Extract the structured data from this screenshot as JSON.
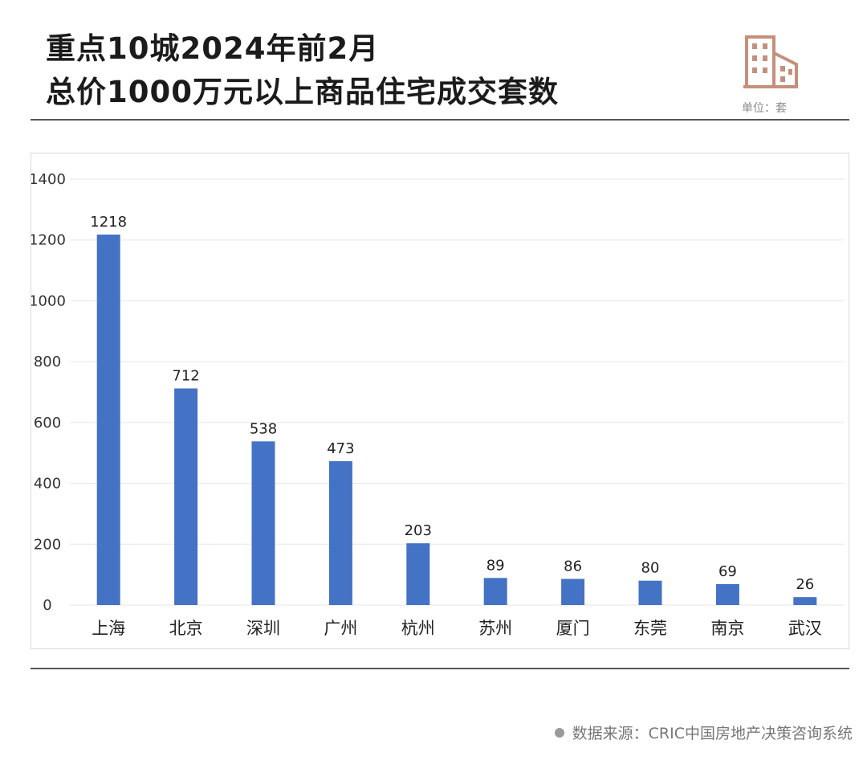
{
  "header": {
    "title_line1": "重点10城2024年前2月",
    "title_line2": "总价1000万元以上商品住宅成交套数",
    "unit_label": "单位：套",
    "icon": "building-icon"
  },
  "footer": {
    "source": "数据来源：CRIC中国房地产决策咨询系统"
  },
  "colors": {
    "bar": "#4472C4",
    "icon": "#C4907C",
    "grid": "#e6e6e6"
  },
  "chart_data": {
    "type": "bar",
    "title": "重点10城2024年前2月总价1000万元以上商品住宅成交套数",
    "xlabel": "",
    "ylabel": "",
    "ylim": [
      0,
      1400
    ],
    "yticks": [
      0,
      200,
      400,
      600,
      800,
      1000,
      1200,
      1400
    ],
    "grid": true,
    "legend": "none",
    "categories": [
      "上海",
      "北京",
      "深圳",
      "广州",
      "杭州",
      "苏州",
      "厦门",
      "东莞",
      "南京",
      "武汉"
    ],
    "values": [
      1218,
      712,
      538,
      473,
      203,
      89,
      86,
      80,
      69,
      26
    ]
  }
}
